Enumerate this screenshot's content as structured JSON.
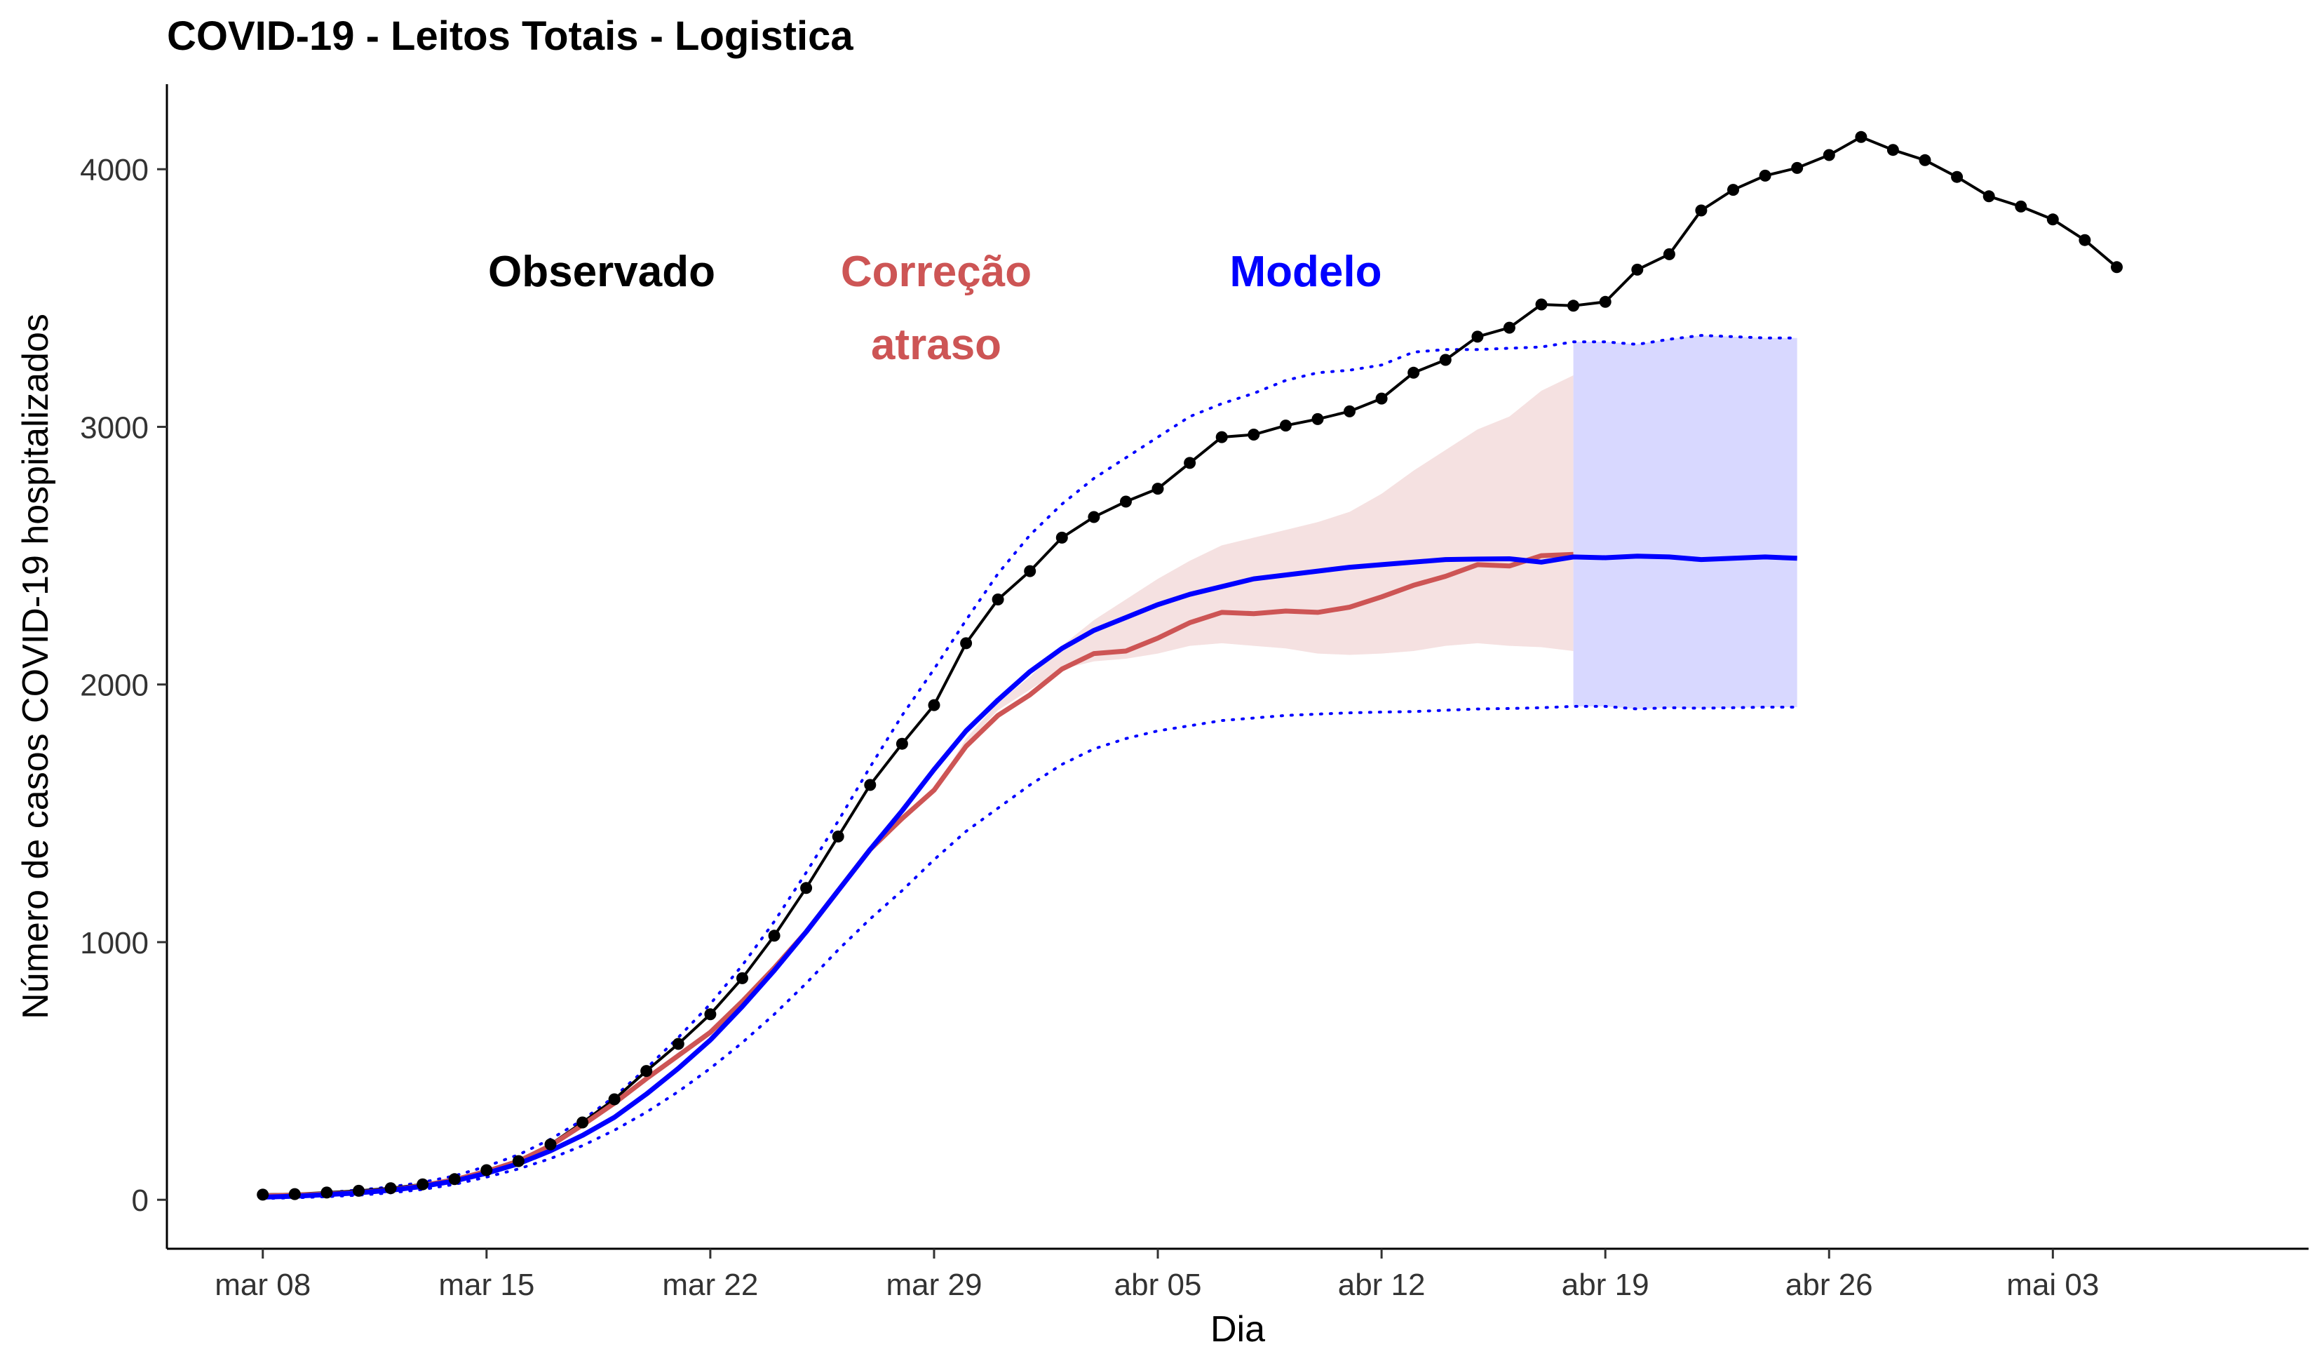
{
  "chart_data": {
    "type": "line",
    "title": "COVID-19 - Leitos Totais - Logistica",
    "xlabel": "Dia",
    "ylabel": "Número de casos COVID-19 hospitalizados",
    "x_start": "2020-03-08",
    "x_ticks": [
      {
        "date": "2020-03-08",
        "label": "mar 08"
      },
      {
        "date": "2020-03-15",
        "label": "mar 15"
      },
      {
        "date": "2020-03-22",
        "label": "mar 22"
      },
      {
        "date": "2020-03-29",
        "label": "mar 29"
      },
      {
        "date": "2020-04-05",
        "label": "abr 05"
      },
      {
        "date": "2020-04-12",
        "label": "abr 12"
      },
      {
        "date": "2020-04-19",
        "label": "abr 19"
      },
      {
        "date": "2020-04-26",
        "label": "abr 26"
      },
      {
        "date": "2020-05-03",
        "label": "mai 03"
      }
    ],
    "xlim": [
      "2020-03-05",
      "2020-05-11"
    ],
    "y_ticks": [
      0,
      1000,
      2000,
      3000,
      4000
    ],
    "ylim": [
      -190,
      4330
    ],
    "grid": false,
    "annotations": [
      {
        "text": "Observado",
        "color": "#000000"
      },
      {
        "text": "Correção",
        "color": "#CD5555"
      },
      {
        "text": "atraso",
        "color": "#CD5555"
      },
      {
        "text": "Modelo",
        "color": "#0000FF"
      }
    ],
    "series": [
      {
        "key": "observado",
        "color": "#000000",
        "values": [
          20,
          22,
          28,
          35,
          45,
          60,
          80,
          115,
          150,
          215,
          300,
          390,
          500,
          605,
          720,
          860,
          1025,
          1210,
          1410,
          1610,
          1770,
          1920,
          2160,
          2330,
          2440,
          2570,
          2650,
          2710,
          2760,
          2860,
          2960,
          2970,
          3005,
          3030,
          3060,
          3110,
          3210,
          3260,
          3350,
          3385,
          3475,
          3470,
          3485,
          3610,
          3670,
          3840,
          3920,
          3975,
          4005,
          4055,
          4125,
          4075,
          4035,
          3970,
          3895,
          3855,
          3805,
          3725,
          3620
        ]
      },
      {
        "key": "correcao",
        "color": "#CD5555",
        "values": [
          15,
          18,
          22,
          28,
          38,
          55,
          78,
          110,
          150,
          210,
          290,
          375,
          470,
          560,
          650,
          770,
          900,
          1040,
          1200,
          1360,
          1480,
          1590,
          1760,
          1880,
          1960,
          2060,
          2120,
          2130,
          2180,
          2240,
          2280,
          2275,
          2285,
          2280,
          2300,
          2340,
          2385,
          2420,
          2465,
          2460,
          2500,
          2505
        ]
      },
      {
        "key": "correcao_lower",
        "color": "#CD5555",
        "values": [
          15,
          18,
          22,
          28,
          38,
          55,
          78,
          110,
          150,
          210,
          290,
          375,
          470,
          560,
          650,
          770,
          900,
          1040,
          1200,
          1360,
          1480,
          1590,
          1770,
          1900,
          1980,
          2060,
          2090,
          2100,
          2120,
          2150,
          2160,
          2150,
          2140,
          2120,
          2115,
          2120,
          2130,
          2150,
          2160,
          2150,
          2145,
          2130
        ]
      },
      {
        "key": "correcao_upper",
        "color": "#CD5555",
        "values": [
          15,
          18,
          22,
          28,
          38,
          55,
          78,
          110,
          150,
          210,
          290,
          375,
          470,
          560,
          650,
          770,
          900,
          1040,
          1200,
          1360,
          1480,
          1590,
          1790,
          1930,
          2030,
          2150,
          2250,
          2330,
          2410,
          2480,
          2540,
          2570,
          2600,
          2630,
          2670,
          2740,
          2830,
          2910,
          2990,
          3040,
          3140,
          3200
        ]
      },
      {
        "key": "modelo",
        "color": "#0000FF",
        "values": [
          10,
          14,
          20,
          27,
          37,
          52,
          73,
          103,
          140,
          190,
          250,
          320,
          410,
          510,
          620,
          750,
          890,
          1040,
          1200,
          1360,
          1510,
          1670,
          1820,
          1940,
          2050,
          2140,
          2210,
          2260,
          2310,
          2350,
          2380,
          2410,
          2425,
          2440,
          2455,
          2465,
          2475,
          2485,
          2487,
          2488,
          2475,
          2495,
          2492,
          2498,
          2495,
          2485,
          2490,
          2495,
          2490
        ]
      },
      {
        "key": "modelo_lower",
        "color": "#0000FF",
        "values": [
          5,
          8,
          12,
          18,
          27,
          40,
          60,
          88,
          120,
          160,
          210,
          270,
          340,
          420,
          510,
          610,
          720,
          840,
          970,
          1090,
          1200,
          1320,
          1430,
          1520,
          1610,
          1690,
          1750,
          1790,
          1820,
          1840,
          1860,
          1870,
          1880,
          1885,
          1890,
          1893,
          1895,
          1900,
          1905,
          1907,
          1910,
          1915,
          1915,
          1905,
          1910,
          1908,
          1910,
          1912,
          1912
        ]
      },
      {
        "key": "modelo_upper",
        "color": "#0000FF",
        "values": [
          15,
          20,
          28,
          38,
          50,
          68,
          93,
          130,
          175,
          235,
          310,
          400,
          510,
          630,
          760,
          910,
          1080,
          1270,
          1470,
          1680,
          1880,
          2060,
          2250,
          2430,
          2580,
          2700,
          2800,
          2880,
          2960,
          3040,
          3090,
          3130,
          3180,
          3210,
          3220,
          3240,
          3290,
          3300,
          3300,
          3305,
          3310,
          3330,
          3330,
          3320,
          3340,
          3355,
          3350,
          3345,
          3345
        ]
      }
    ],
    "forecast_band": {
      "color": "#D8D8FF",
      "start": "2020-04-18",
      "end": "2020-04-25"
    }
  }
}
